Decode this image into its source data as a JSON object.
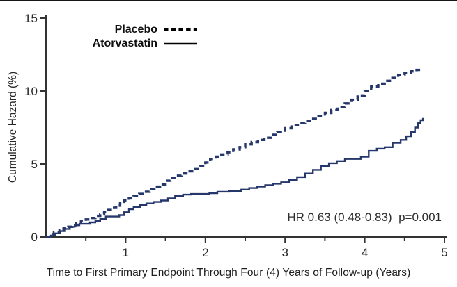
{
  "page": {
    "background": "#ffffff",
    "top_border_color": "#161616",
    "axis_color": "#333333",
    "tick_text_color": "#262626"
  },
  "chart_data": {
    "type": "line",
    "subtype": "step-cumulative-hazard-curves",
    "title": "",
    "xlabel": "Time to First Primary Endpoint Through Four (4) Years of Follow-up (Years)",
    "ylabel": "Cumulative Hazard (%)",
    "xlim": [
      0,
      5
    ],
    "ylim": [
      0,
      15
    ],
    "x_major_ticks": [
      1,
      2,
      3,
      4,
      5
    ],
    "x_minor_ticks": [
      0.5,
      1.5,
      2.5,
      3.5,
      4.5
    ],
    "y_ticks": [
      0,
      5,
      10,
      15
    ],
    "grid": false,
    "annotation": "HR 0.63 (0.48-0.83)  p=0.001",
    "curve_color": "#26376b",
    "legend": {
      "position": "top-left-inside",
      "line_color": "#000000",
      "entries": [
        {
          "label": "Placebo",
          "line": "dashed"
        },
        {
          "label": "Atorvastatin",
          "line": "solid"
        }
      ]
    },
    "series": [
      {
        "name": "Placebo",
        "style": "dashed",
        "color": "#26376b",
        "points": [
          [
            0,
            0
          ],
          [
            0.05,
            0.15
          ],
          [
            0.1,
            0.3
          ],
          [
            0.17,
            0.45
          ],
          [
            0.22,
            0.6
          ],
          [
            0.28,
            0.7
          ],
          [
            0.33,
            0.8
          ],
          [
            0.38,
            0.95
          ],
          [
            0.44,
            1.1
          ],
          [
            0.5,
            1.2
          ],
          [
            0.56,
            1.3
          ],
          [
            0.62,
            1.45
          ],
          [
            0.68,
            1.55
          ],
          [
            0.73,
            1.7
          ],
          [
            0.78,
            1.85
          ],
          [
            0.83,
            2.0
          ],
          [
            0.88,
            2.15
          ],
          [
            0.93,
            2.3
          ],
          [
            0.98,
            2.5
          ],
          [
            1.04,
            2.65
          ],
          [
            1.1,
            2.8
          ],
          [
            1.17,
            2.95
          ],
          [
            1.24,
            3.1
          ],
          [
            1.3,
            3.3
          ],
          [
            1.36,
            3.45
          ],
          [
            1.43,
            3.6
          ],
          [
            1.5,
            3.85
          ],
          [
            1.56,
            4.05
          ],
          [
            1.63,
            4.2
          ],
          [
            1.7,
            4.35
          ],
          [
            1.78,
            4.5
          ],
          [
            1.86,
            4.65
          ],
          [
            1.93,
            4.85
          ],
          [
            2.0,
            5.1
          ],
          [
            2.06,
            5.35
          ],
          [
            2.13,
            5.5
          ],
          [
            2.2,
            5.65
          ],
          [
            2.28,
            5.8
          ],
          [
            2.35,
            6.0
          ],
          [
            2.43,
            6.15
          ],
          [
            2.5,
            6.35
          ],
          [
            2.58,
            6.5
          ],
          [
            2.66,
            6.65
          ],
          [
            2.74,
            6.8
          ],
          [
            2.82,
            7.0
          ],
          [
            2.9,
            7.2
          ],
          [
            3.0,
            7.45
          ],
          [
            3.08,
            7.65
          ],
          [
            3.16,
            7.8
          ],
          [
            3.25,
            7.95
          ],
          [
            3.33,
            8.1
          ],
          [
            3.42,
            8.3
          ],
          [
            3.5,
            8.5
          ],
          [
            3.58,
            8.7
          ],
          [
            3.66,
            8.9
          ],
          [
            3.75,
            9.15
          ],
          [
            3.83,
            9.4
          ],
          [
            3.91,
            9.7
          ],
          [
            4.0,
            10.0
          ],
          [
            4.08,
            10.3
          ],
          [
            4.17,
            10.5
          ],
          [
            4.25,
            10.7
          ],
          [
            4.33,
            10.9
          ],
          [
            4.42,
            11.1
          ],
          [
            4.5,
            11.25
          ],
          [
            4.58,
            11.35
          ],
          [
            4.65,
            11.45
          ],
          [
            4.72,
            11.5
          ]
        ]
      },
      {
        "name": "Atorvastatin",
        "style": "solid",
        "color": "#26376b",
        "points": [
          [
            0,
            0
          ],
          [
            0.06,
            0.1
          ],
          [
            0.12,
            0.25
          ],
          [
            0.18,
            0.4
          ],
          [
            0.24,
            0.55
          ],
          [
            0.3,
            0.7
          ],
          [
            0.36,
            0.8
          ],
          [
            0.42,
            0.9
          ],
          [
            0.55,
            1.0
          ],
          [
            0.62,
            1.1
          ],
          [
            0.68,
            1.25
          ],
          [
            0.75,
            1.4
          ],
          [
            0.92,
            1.5
          ],
          [
            0.98,
            1.7
          ],
          [
            1.04,
            1.9
          ],
          [
            1.1,
            2.05
          ],
          [
            1.18,
            2.2
          ],
          [
            1.26,
            2.3
          ],
          [
            1.35,
            2.4
          ],
          [
            1.44,
            2.5
          ],
          [
            1.53,
            2.65
          ],
          [
            1.62,
            2.8
          ],
          [
            1.72,
            2.9
          ],
          [
            1.82,
            2.95
          ],
          [
            2.05,
            3.0
          ],
          [
            2.15,
            3.1
          ],
          [
            2.3,
            3.15
          ],
          [
            2.45,
            3.25
          ],
          [
            2.55,
            3.35
          ],
          [
            2.65,
            3.45
          ],
          [
            2.75,
            3.55
          ],
          [
            2.85,
            3.65
          ],
          [
            2.95,
            3.75
          ],
          [
            3.05,
            3.9
          ],
          [
            3.15,
            4.1
          ],
          [
            3.25,
            4.35
          ],
          [
            3.35,
            4.6
          ],
          [
            3.45,
            4.85
          ],
          [
            3.55,
            5.05
          ],
          [
            3.65,
            5.2
          ],
          [
            3.75,
            5.35
          ],
          [
            3.95,
            5.5
          ],
          [
            4.05,
            5.9
          ],
          [
            4.15,
            6.05
          ],
          [
            4.25,
            6.15
          ],
          [
            4.35,
            6.45
          ],
          [
            4.45,
            6.65
          ],
          [
            4.52,
            6.9
          ],
          [
            4.58,
            7.2
          ],
          [
            4.63,
            7.5
          ],
          [
            4.67,
            7.8
          ],
          [
            4.7,
            8.0
          ],
          [
            4.73,
            8.15
          ]
        ]
      }
    ]
  }
}
